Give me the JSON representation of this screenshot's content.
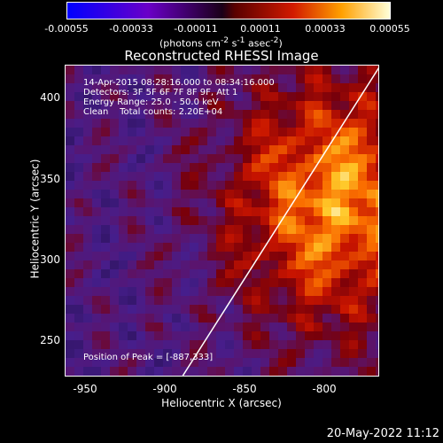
{
  "colorbar": {
    "ticks": [
      "-0.00055",
      "-0.00033",
      "-0.00011",
      "0.00011",
      "0.00033",
      "0.00055"
    ],
    "units_main": "(photons cm",
    "units_sup1": "-2",
    "units_mid": " s",
    "units_sup2": "-1",
    "units_end": " asec",
    "units_sup3": "-2",
    "units_close": ")"
  },
  "chart_data": {
    "type": "heatmap",
    "title": "Reconstructed RHESSI Image",
    "xlabel": "Heliocentric X (arcsec)",
    "ylabel": "Heliocentric Y (arcsec)",
    "xlim": [
      -962,
      -874
    ],
    "ylim": [
      224,
      413
    ],
    "xticks": [
      "-950",
      "-900",
      "-850",
      "-800"
    ],
    "yticks": [
      "250",
      "300",
      "350",
      "400"
    ],
    "colorbar_range": [
      -0.00055,
      0.00055
    ],
    "limb_line": [
      [
        -929,
        224
      ],
      [
        -872,
        418
      ]
    ],
    "peak": [
      -887,
      333
    ],
    "annotations": {
      "time": "14-Apr-2015 08:28:16.000 to 08:34:16.000",
      "detectors": "Detectors: 3F 5F 6F 7F 8F 9F, Att 1",
      "energy": "Energy Range: 25.0 - 50.0 keV",
      "clean": "Clean    Total counts: 2.20E+04",
      "peak_text": "Position of Peak = [-887,333]"
    }
  },
  "timestamp": "20-May-2022 11:12"
}
